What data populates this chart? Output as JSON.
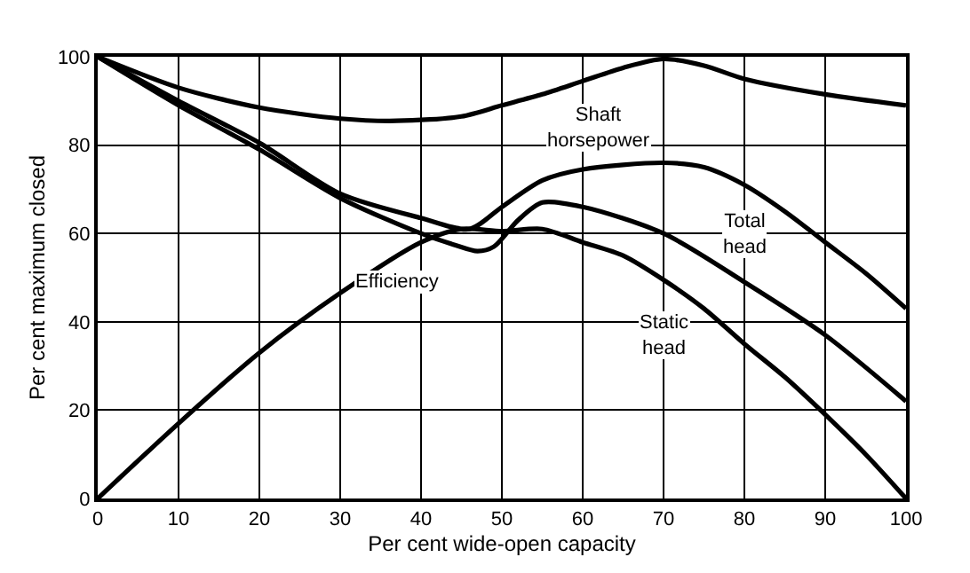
{
  "chart_data": {
    "type": "line",
    "xlabel": "Per cent wide-open capacity",
    "ylabel": "Per cent maximum closed",
    "xlim": [
      0,
      100
    ],
    "xticks": [
      0,
      10,
      20,
      30,
      40,
      50,
      60,
      70,
      80,
      90,
      100
    ],
    "ylim": [
      0,
      100
    ],
    "yticks": [
      0,
      20,
      40,
      60,
      80,
      100
    ],
    "grid": true,
    "marker": "none",
    "line_style": "solid",
    "series": [
      {
        "color": "#000000",
        "x": [
          0,
          10,
          20,
          30,
          37,
          45,
          50,
          55,
          60,
          65,
          70,
          75,
          80,
          90,
          100
        ],
        "values": [
          100,
          93,
          88.5,
          86,
          85.5,
          86.5,
          89,
          91.5,
          94.5,
          97.5,
          99.5,
          98,
          95,
          91.5,
          89
        ]
      },
      {
        "color": "#000000",
        "x": [
          0,
          10,
          20,
          30,
          40,
          46,
          50,
          55,
          60,
          70,
          75,
          80,
          85,
          90,
          95,
          100
        ],
        "values": [
          100,
          90,
          80.5,
          69,
          63.5,
          61,
          66,
          72,
          74.5,
          76,
          75,
          71,
          65,
          58,
          51,
          43
        ]
      },
      {
        "color": "#000000",
        "x": [
          0,
          10,
          20,
          30,
          40,
          44,
          47,
          49,
          52,
          55,
          60,
          70,
          80,
          90,
          100
        ],
        "values": [
          100,
          89,
          79,
          68,
          60,
          57.5,
          56,
          57,
          63,
          67,
          66,
          60,
          49,
          37,
          22
        ]
      },
      {
        "color": "#000000",
        "x": [
          0,
          10,
          20,
          30,
          40,
          45,
          50,
          55,
          60,
          65,
          70,
          75,
          80,
          85,
          90,
          95,
          100
        ],
        "values": [
          0,
          17,
          33,
          46.5,
          58,
          61,
          60.5,
          61,
          58,
          55,
          49.5,
          43,
          35,
          27.5,
          19,
          10,
          0
        ]
      }
    ],
    "annotations": [
      "Shaft\nhorsepower",
      "Total\nhead",
      "Static\nhead",
      "Efficiency"
    ]
  }
}
